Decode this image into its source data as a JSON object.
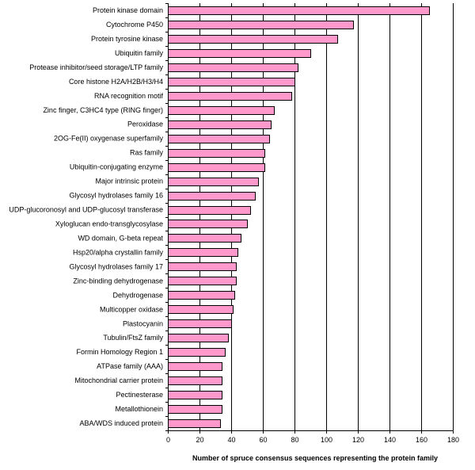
{
  "chart_data": {
    "type": "bar",
    "orientation": "horizontal",
    "categories": [
      "Protein kinase domain",
      "Cytochrome P450",
      "Protein tyrosine kinase",
      "Ubiquitin family",
      "Protease inhibitor/seed storage/LTP family",
      "Core histone H2A/H2B/H3/H4",
      "RNA recognition motif",
      "Zinc finger, C3HC4 type (RING finger)",
      "Peroxidase",
      "2OG-Fe(II) oxygenase superfamily",
      "Ras family",
      "Ubiquitin-conjugating enzyme",
      "Major intrinsic protein",
      "Glycosyl hydrolases family 16",
      "UDP-glucoronosyl and UDP-glucosyl transferase",
      "Xyloglucan endo-transglycosylase",
      "WD domain, G-beta repeat",
      "Hsp20/alpha crystallin family",
      "Glycosyl hydrolases family 17",
      "Zinc-binding dehydrogenase",
      "Dehydrogenase",
      "Multicopper oxidase",
      "Plastocyanin",
      "Tubulin/FtsZ family",
      "Formin Homology Region 1",
      "ATPase family (AAA)",
      "Mitochondrial carrier protein",
      "Pectinesterase",
      "Metallothionein",
      "ABA/WDS induced protein"
    ],
    "values": [
      165,
      117,
      107,
      90,
      82,
      80,
      78,
      67,
      65,
      64,
      61,
      61,
      57,
      55,
      52,
      50,
      46,
      44,
      43,
      43,
      42,
      41,
      40,
      38,
      36,
      34,
      34,
      34,
      34,
      33
    ],
    "xlabel": "Number of spruce consensus sequences representing the protein family",
    "ylabel": "",
    "title": "",
    "xlim": [
      0,
      180
    ],
    "xticks": [
      0,
      20,
      40,
      60,
      80,
      100,
      120,
      140,
      160,
      180
    ],
    "grid": "vertical lines at major ticks",
    "legend": "none",
    "bar_color": "#ff99cc",
    "bar_edge_color": "#000000"
  }
}
